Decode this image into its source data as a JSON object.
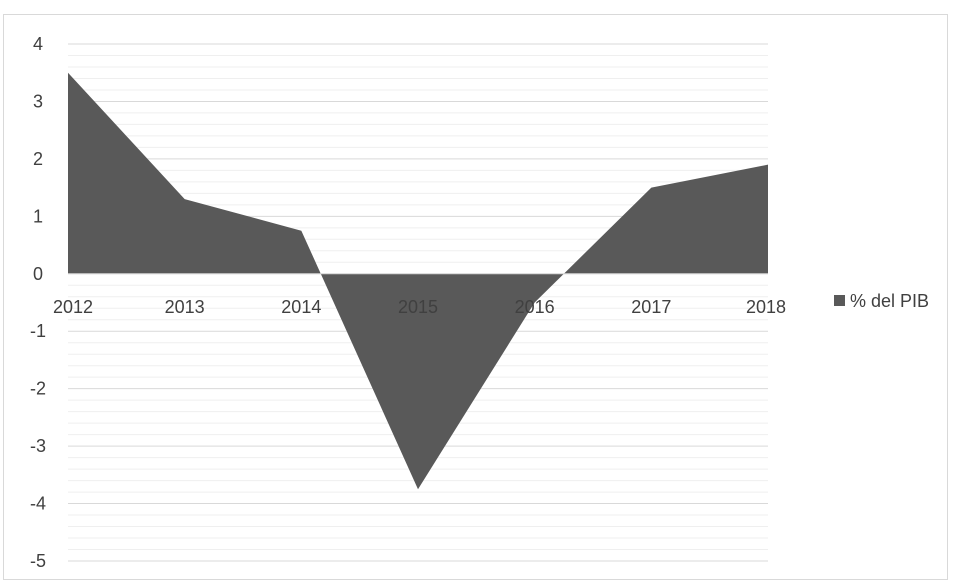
{
  "chart_data": {
    "type": "area",
    "categories": [
      "2012",
      "2013",
      "2014",
      "2015",
      "2016",
      "2017",
      "2018"
    ],
    "series": [
      {
        "name": "% del PIB",
        "values": [
          3.5,
          1.3,
          0.75,
          -3.75,
          -0.5,
          1.5,
          1.9
        ],
        "color": "#595959"
      }
    ],
    "ylim": [
      -5,
      4
    ],
    "yticks": [
      4,
      3,
      2,
      1,
      0,
      -1,
      -2,
      -3,
      -4,
      -5
    ],
    "grid": true,
    "legend": "right"
  }
}
